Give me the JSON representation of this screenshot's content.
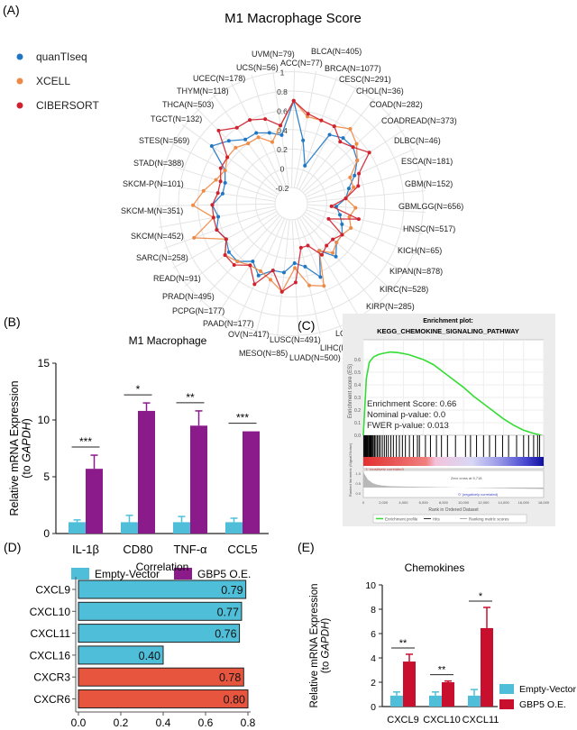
{
  "panel_labels": {
    "a": "(A)",
    "b": "(B)",
    "c": "(C)",
    "d": "(D)",
    "e": "(E)"
  },
  "colors": {
    "quanTIseq": "#1f77c4",
    "XCELL": "#ee8a45",
    "CIBERSORT": "#d0212e",
    "empty_vector": "#4fbfd9",
    "gbp5_b": "#8b1a8b",
    "gbp5_e": "#c8102e",
    "cxcl": "#4fbfd9",
    "cxcr": "#e8553f",
    "es_curve": "#33dd33"
  },
  "chart_data": [
    {
      "type": "radar",
      "title": "M1 Macrophage Score",
      "rlim": [
        -0.2,
        1
      ],
      "rticks": [
        "1",
        "0.8",
        "0.6",
        "0.4",
        "0.2",
        "0",
        "-0.2"
      ],
      "rtick_values": [
        1,
        0.8,
        0.6,
        0.4,
        0.2,
        0,
        -0.2
      ],
      "legend_placement": "top-left",
      "categories": [
        "ACC(N=77)",
        "BLCA(N=405)",
        "BRCA(N=1077)",
        "CESC(N=291)",
        "CHOL(N=36)",
        "COAD(N=282)",
        "COADREAD(N=373)",
        "DLBC(N=46)",
        "ESCA(N=181)",
        "GBM(N=152)",
        "GBMLGG(N=656)",
        "HNSC(N=517)",
        "KICH(N=65)",
        "KIPAN(N=878)",
        "KIRC(N=528)",
        "KIRP(N=285)",
        "LAML(N=214)",
        "LGG(N=504)",
        "LIHC(N=363)",
        "LUAD(N=500)",
        "LUSC(N=491)",
        "MESO(N=85)",
        "OV(N=417)",
        "PAAD(N=177)",
        "PCPG(N=177)",
        "PRAD(N=495)",
        "READ(N=91)",
        "SARC(N=258)",
        "SKCM(N=452)",
        "SKCM-M(N=351)",
        "SKCM-P(N=101)",
        "STAD(N=388)",
        "STES(N=569)",
        "TGCT(N=132)",
        "THCA(N=503)",
        "THYM(N=118)",
        "UCEC(N=178)",
        "UCS(N=56)",
        "UVM(N=79)"
      ],
      "series": [
        {
          "name": "quanTIseq",
          "values": [
            0.7,
            0.3,
            0.05,
            0.45,
            0.5,
            0.5,
            0.45,
            0.35,
            0.25,
            0.2,
            0.1,
            0.15,
            0.2,
            0.25,
            0.25,
            0.35,
            0.2,
            0.45,
            0.3,
            0.25,
            0.35,
            0.35,
            0.45,
            0.35,
            0.45,
            0.45,
            0.4,
            0.45,
            0.4,
            0.45,
            0.35,
            0.35,
            0.4,
            0.65,
            0.55,
            0.45,
            0.45,
            0.4,
            0.35
          ]
        },
        {
          "name": "XCELL",
          "values": [
            0.7,
            0.55,
            0.55,
            0.55,
            0.62,
            0.55,
            0.45,
            0.3,
            0.3,
            0.2,
            0.3,
            0.25,
            0.3,
            0.25,
            0.25,
            0.3,
            0.2,
            0.55,
            0.5,
            0.3,
            0.55,
            0.45,
            0.4,
            0.4,
            0.45,
            0.5,
            0.4,
            0.7,
            0.45,
            0.65,
            0.55,
            0.45,
            0.4,
            0.45,
            0.45,
            0.4,
            0.4,
            0.3,
            0.45
          ]
        },
        {
          "name": "CIBERSORT",
          "values": [
            0.7,
            0.58,
            0.55,
            0.55,
            0.45,
            0.5,
            0.6,
            0.4,
            0.35,
            0.2,
            0.05,
            0.35,
            0.05,
            0.25,
            0.2,
            0.2,
            0.25,
            0.1,
            0.1,
            0.45,
            0.55,
            0.35,
            0.55,
            0.4,
            0.5,
            0.5,
            0.4,
            0.45,
            0.45,
            0.45,
            0.4,
            0.4,
            0.45,
            0.45,
            0.7,
            0.6,
            0.6,
            0.55,
            0.45
          ]
        }
      ]
    },
    {
      "type": "bar",
      "title": "M1 Macrophage",
      "ylabel_main": "Relative mRNA Expression",
      "ylabel_pre": "(to ",
      "ylabel_gene": "GAPDH",
      "ylabel_post": ")",
      "ylim": [
        0,
        15
      ],
      "yticks": [
        "0",
        "5",
        "10",
        "15"
      ],
      "ytick_values": [
        0,
        5,
        10,
        15
      ],
      "categories": [
        "IL-1β",
        "CD80",
        "TNF-α",
        "CCL5"
      ],
      "series": [
        {
          "name": "Empty-Vector",
          "values": [
            1.0,
            1.0,
            1.0,
            1.0
          ],
          "errors": [
            0.2,
            0.6,
            0.5,
            0.35
          ]
        },
        {
          "name": "GBP5 O.E.",
          "values": [
            5.7,
            10.8,
            9.5,
            9.0
          ],
          "errors": [
            1.2,
            0.7,
            1.3,
            0.0
          ]
        }
      ],
      "significance": [
        "***",
        "*",
        "**",
        "***"
      ],
      "legend_placement": "bottom"
    },
    {
      "type": "line",
      "title_line1": "Enrichment plot:",
      "title_line2": "KEGG_CHEMOKINE_SIGNALING_PATHWAY",
      "ylabel": "Enrichment score (ES)",
      "ylim": [
        0,
        0.7
      ],
      "yticks": [
        "0.0",
        "0.1",
        "0.2",
        "0.3",
        "0.4",
        "0.5",
        "0.6"
      ],
      "ytick_values": [
        0,
        0.1,
        0.2,
        0.3,
        0.4,
        0.5,
        0.6
      ],
      "es_curve": {
        "x": [
          0,
          300,
          600,
          1000,
          1500,
          2000,
          2700,
          3500,
          4500,
          6000,
          7000,
          8000,
          9000,
          10000,
          11000,
          12000,
          13000,
          14000,
          15000,
          16000,
          17000,
          17800
        ],
        "y": [
          0,
          0.45,
          0.58,
          0.62,
          0.64,
          0.65,
          0.66,
          0.655,
          0.64,
          0.6,
          0.56,
          0.5,
          0.44,
          0.38,
          0.31,
          0.25,
          0.19,
          0.13,
          0.08,
          0.04,
          0.015,
          0
        ]
      },
      "hits": [
        50,
        120,
        200,
        260,
        330,
        400,
        470,
        560,
        640,
        720,
        800,
        900,
        1000,
        1120,
        1250,
        1400,
        1550,
        1700,
        1900,
        2100,
        2300,
        2500,
        2750,
        3000,
        3300,
        3600,
        3900,
        4200,
        4600,
        5000,
        5400,
        5600,
        6200,
        6700,
        7300,
        7800,
        8400,
        9200,
        10200,
        10700,
        11300,
        12000,
        12600,
        13200,
        13900,
        14500,
        15300,
        16000,
        16500,
        17000,
        17400,
        17600
      ],
      "xlim": [
        0,
        18000
      ],
      "xticks": [
        "0",
        "2,000",
        "4,000",
        "6,000",
        "8,000",
        "10,000",
        "12,000",
        "14,000",
        "16,000",
        "18,000"
      ],
      "xtick_values": [
        0,
        2000,
        4000,
        6000,
        8000,
        10000,
        12000,
        14000,
        16000,
        18000
      ],
      "xlabel": "Rank in Ordered Dataset",
      "metric_ylabel": "Ranked list metric (Signal2Noise)",
      "metric_yticks": [
        "1.0",
        "0.5",
        "0.0"
      ],
      "pos_label": "'1' (positively correlated)",
      "neg_label": "'0' (negatively correlated)",
      "zero_cross": "Zero cross at 5,718",
      "stats": [
        "Enrichment Score: 0.66",
        "Nominal p-value: 0.0",
        "FWER p-value: 0.013"
      ],
      "legend": [
        "Enrichment profile",
        "Hits",
        "Ranking metric scores"
      ]
    },
    {
      "type": "bar",
      "orientation": "horizontal",
      "title": "Correlation",
      "categories": [
        "CXCL9",
        "CXCL10",
        "CXCL11",
        "CXCL16",
        "CXCR3",
        "CXCR6"
      ],
      "values": [
        0.79,
        0.77,
        0.76,
        0.4,
        0.78,
        0.8
      ],
      "value_labels": [
        "0.79",
        "0.77",
        "0.76",
        "0.40",
        "0.78",
        "0.80"
      ],
      "groups": [
        "cxcl",
        "cxcl",
        "cxcl",
        "cxcl",
        "cxcr",
        "cxcr"
      ],
      "xlim": [
        0,
        0.8
      ],
      "xticks": [
        "0.0",
        "0.2",
        "0.4",
        "0.6",
        "0.8"
      ],
      "xtick_values": [
        0,
        0.2,
        0.4,
        0.6,
        0.8
      ]
    },
    {
      "type": "bar",
      "title": "Chemokines",
      "ylabel_main": "Relative mRNA Expression",
      "ylabel_pre": "(to ",
      "ylabel_gene": "GAPDH",
      "ylabel_post": ")",
      "ylim": [
        0,
        10
      ],
      "yticks": [
        "0",
        "2",
        "4",
        "6",
        "8",
        "10"
      ],
      "ytick_values": [
        0,
        2,
        4,
        6,
        8,
        10
      ],
      "categories": [
        "CXCL9",
        "CXCL10",
        "CXCL11"
      ],
      "series": [
        {
          "name": "Empty-Vector",
          "values": [
            0.9,
            0.9,
            0.9
          ],
          "errors": [
            0.3,
            0.3,
            0.5
          ]
        },
        {
          "name": "GBP5 O.E.",
          "values": [
            3.7,
            2.0,
            6.45
          ],
          "errors": [
            0.6,
            0.1,
            1.7
          ]
        }
      ],
      "significance": [
        "**",
        "**",
        "*"
      ],
      "legend_placement": "right"
    }
  ]
}
